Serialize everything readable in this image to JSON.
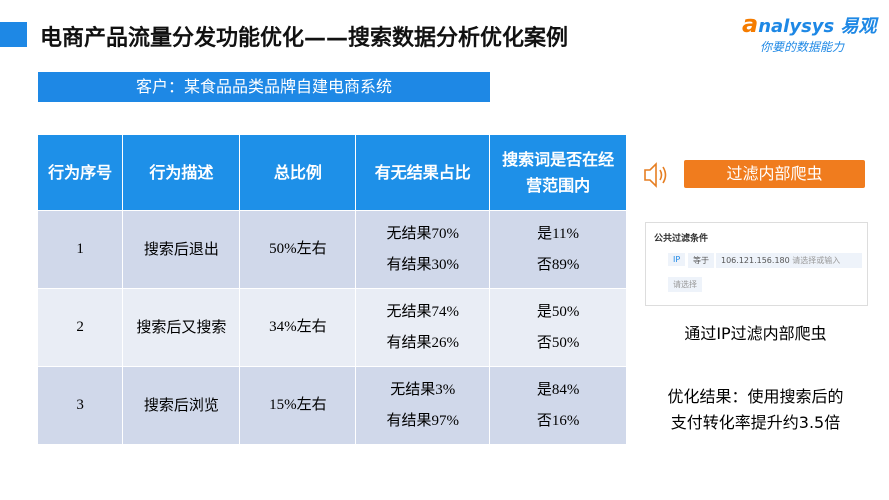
{
  "header": {
    "title": "电商产品流量分发功能优化——搜索数据分析优化案例",
    "logo": "nalysys 易观",
    "logo_mark": "a",
    "slogan": "你要的数据能力"
  },
  "client": "客户：某食品品类品牌自建电商系统",
  "table": {
    "columns": [
      "行为序号",
      "行为描述",
      "总比例",
      "有无结果占比",
      "搜索词是否在经营范围内"
    ],
    "rows": [
      [
        "1",
        "搜索后退出",
        "50%左右",
        [
          "无结果70%",
          "有结果30%"
        ],
        [
          "是11%",
          "否89%"
        ]
      ],
      [
        "2",
        "搜索后又搜索",
        "34%左右",
        [
          "无结果74%",
          "有结果26%"
        ],
        [
          "是50%",
          "否50%"
        ]
      ],
      [
        "3",
        "搜索后浏览",
        "15%左右",
        [
          "无结果3%",
          "有结果97%"
        ],
        [
          "是84%",
          "否16%"
        ]
      ]
    ]
  },
  "side": {
    "button": "过滤内部爬虫",
    "panel": {
      "title": "公共过滤条件",
      "field": "IP",
      "operator": "等于",
      "value": "106.121.156.180",
      "placeholder": "请选择或输入",
      "select": "请选择"
    },
    "caption": "通过IP过滤内部爬虫",
    "result": [
      "优化结果：使用搜索后的",
      "支付转化率提升约3.5倍"
    ]
  }
}
